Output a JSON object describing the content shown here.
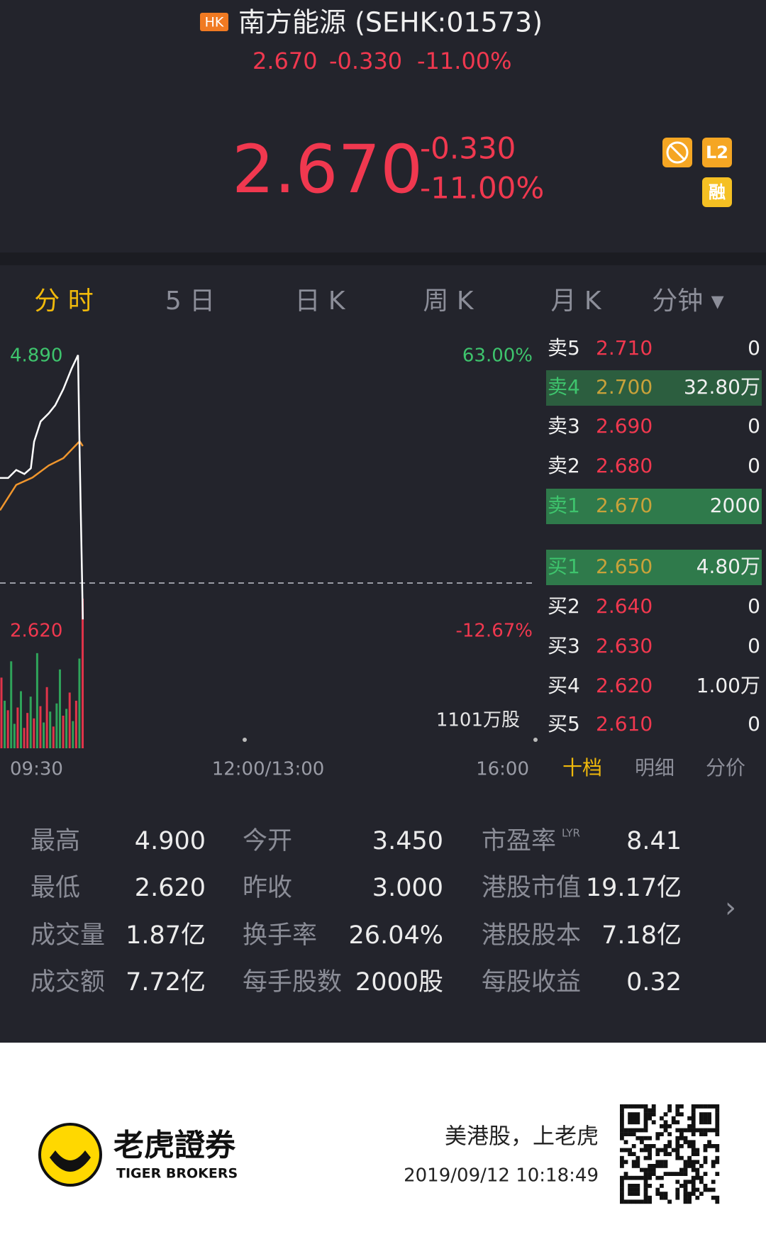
{
  "header": {
    "market_badge": "HK",
    "title": "南方能源 (SEHK:01573)",
    "summary": {
      "price": "2.670",
      "change": "-0.330",
      "change_pct": "-11.00%"
    }
  },
  "quote": {
    "price": "2.670",
    "change": "-0.330",
    "change_pct": "-11.00%",
    "badges": [
      "L2",
      "融"
    ]
  },
  "tabs": [
    "分 时",
    "5 日",
    "日 K",
    "周 K",
    "月 K",
    "分钟 ▾"
  ],
  "chart": {
    "ylim": [
      2.62,
      4.89
    ],
    "yticks": [
      {
        "value": 4.89,
        "label": "4.890"
      },
      {
        "value": 2.62,
        "label": "2.620"
      }
    ],
    "pct_labels": [
      "63.00%",
      "-12.67%"
    ],
    "prev_close": 3.0,
    "xlim": [
      0,
      330
    ],
    "xticks": [
      {
        "value": 0,
        "label": "09:30"
      },
      {
        "value": 165,
        "label": "12:00/13:00"
      },
      {
        "value": 330,
        "label": "16:00"
      }
    ],
    "price": {
      "x": [
        0,
        5,
        10,
        15,
        19,
        21,
        25,
        30,
        34,
        39,
        44,
        48,
        49,
        51
      ],
      "values": [
        3.867,
        3.867,
        3.933,
        3.9,
        3.947,
        4.167,
        4.333,
        4.4,
        4.467,
        4.6,
        4.767,
        4.88,
        4.07,
        2.7
      ],
      "color": "#ffffff"
    },
    "average": {
      "x": [
        0,
        10,
        20,
        30,
        39,
        49,
        51
      ],
      "values": [
        3.6,
        3.81,
        3.87,
        3.97,
        4.03,
        4.17,
        4.13
      ],
      "color": "#f0962d"
    },
    "volume": {
      "ylim": [
        0,
        1101
      ],
      "max_label": "1101万股",
      "x": [
        0,
        2,
        4,
        6,
        8,
        10,
        12,
        14,
        16,
        18,
        20,
        22,
        24,
        26,
        28,
        30,
        32,
        34,
        36,
        38,
        40,
        42,
        44,
        46,
        48,
        50
      ],
      "values": [
        520,
        350,
        280,
        640,
        180,
        300,
        420,
        150,
        260,
        380,
        220,
        700,
        310,
        190,
        450,
        270,
        160,
        330,
        580,
        240,
        290,
        410,
        200,
        350,
        660,
        1101
      ],
      "colors": [
        "#e0344a",
        "#2fa35a",
        "#e0344a",
        "#2fa35a",
        "#2fa35a",
        "#e0344a",
        "#2fa35a",
        "#e0344a",
        "#e0344a",
        "#2fa35a",
        "#e0344a",
        "#2fa35a",
        "#e0344a",
        "#2fa35a",
        "#e0344a",
        "#2fa35a",
        "#e0344a",
        "#2fa35a",
        "#2fa35a",
        "#e0344a",
        "#2fa35a",
        "#e0344a",
        "#2fa35a",
        "#e0344a",
        "#2fa35a",
        "#e0344a"
      ]
    }
  },
  "order_book": {
    "rows": [
      {
        "side": "卖5",
        "price": "2.710",
        "volume": "0"
      },
      {
        "side": "卖4",
        "price": "2.700",
        "volume": "32.80万",
        "highlight": "#2c5e3f"
      },
      {
        "side": "卖3",
        "price": "2.690",
        "volume": "0"
      },
      {
        "side": "卖2",
        "price": "2.680",
        "volume": "0"
      },
      {
        "side": "卖1",
        "price": "2.670",
        "volume": "2000",
        "highlight": "#2f7a4b"
      },
      {
        "side": "买1",
        "price": "2.650",
        "volume": "4.80万",
        "highlight": "#2f7a4b"
      },
      {
        "side": "买2",
        "price": "2.640",
        "volume": "0"
      },
      {
        "side": "买3",
        "price": "2.630",
        "volume": "0"
      },
      {
        "side": "买4",
        "price": "2.620",
        "volume": "1.00万"
      },
      {
        "side": "买5",
        "price": "2.610",
        "volume": "0"
      }
    ],
    "tabs": [
      "十档",
      "明细",
      "分价"
    ]
  },
  "stats": {
    "rows": [
      [
        "最高",
        "4.900",
        "今开",
        "3.450",
        "市盈率",
        "8.41"
      ],
      [
        "最低",
        "2.620",
        "昨收",
        "3.000",
        "港股市值",
        "19.17亿"
      ],
      [
        "成交量",
        "1.87亿",
        "换手率",
        "26.04%",
        "港股股本",
        "7.18亿"
      ],
      [
        "成交额",
        "7.72亿",
        "每手股数",
        "2000股",
        "每股收益",
        "0.32"
      ]
    ],
    "pe_note": "LYR"
  },
  "footer": {
    "brand": "老虎證券",
    "brand_en": "TIGER BROKERS",
    "slogan": "美港股，上老虎",
    "timestamp": "2019/09/12 10:18:49"
  }
}
